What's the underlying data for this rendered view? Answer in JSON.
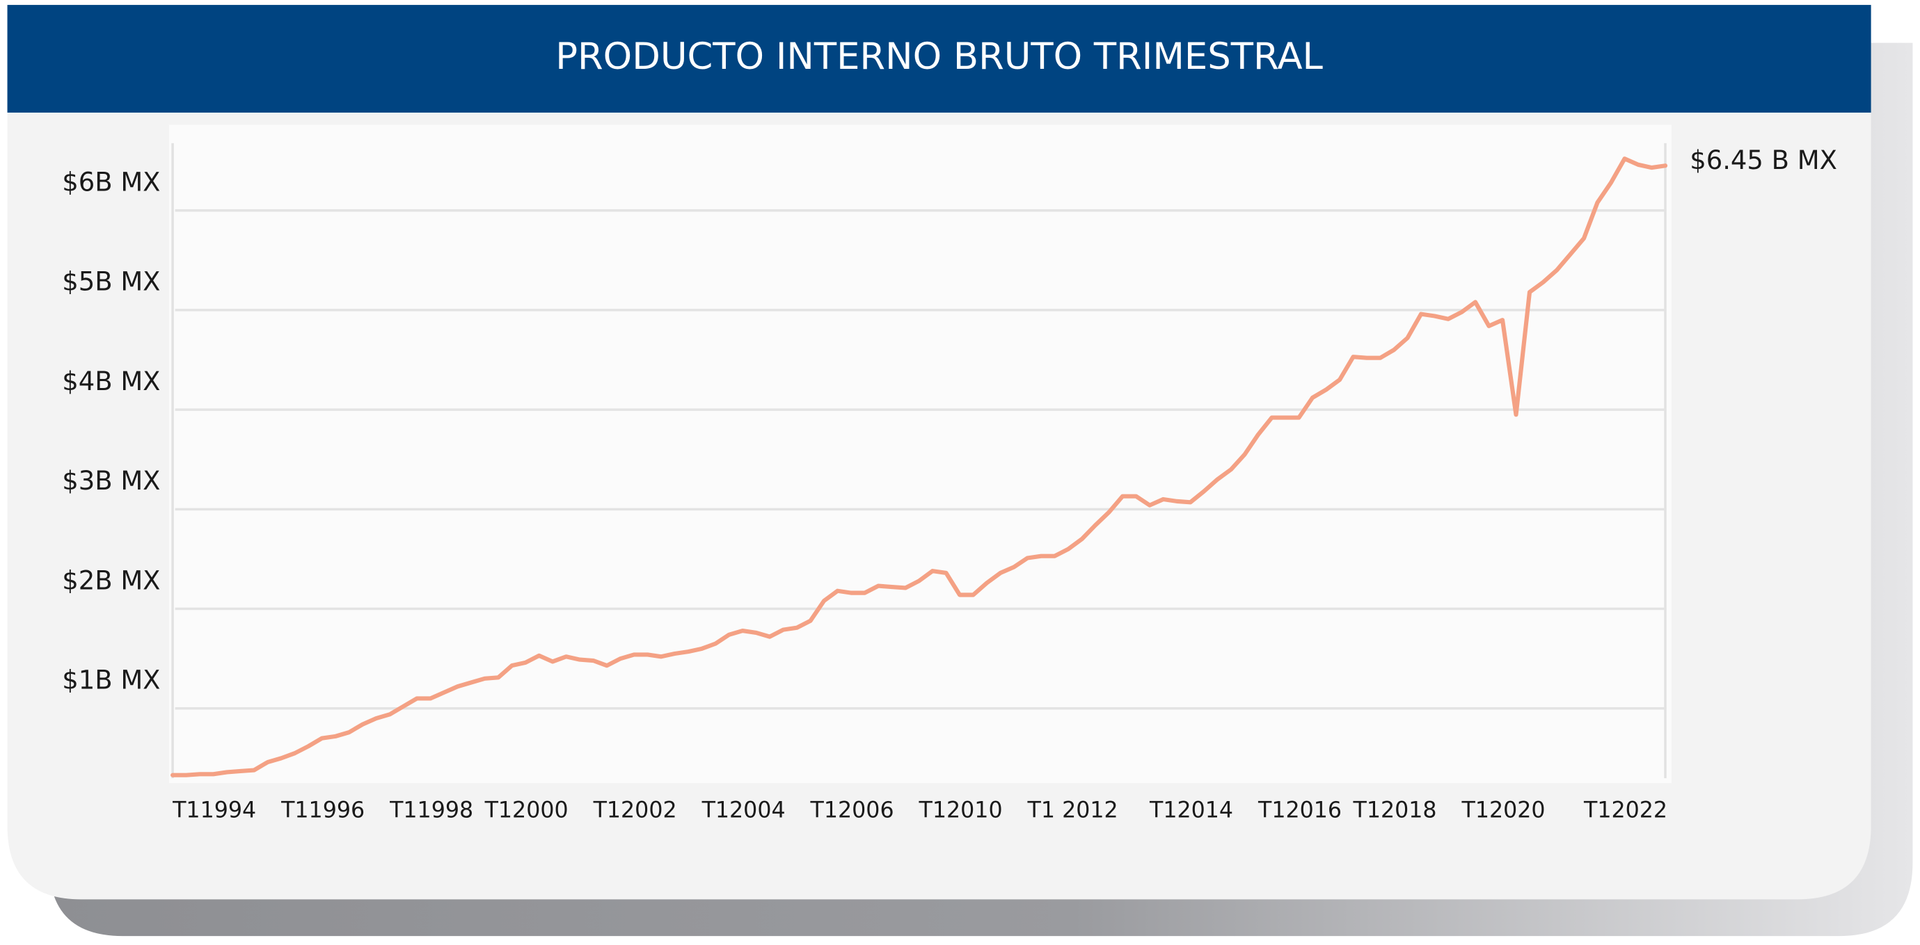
{
  "chart_data": {
    "type": "line",
    "title": "PRODUCTO INTERNO BRUTO TRIMESTRAL",
    "annotation": "$6.45 B MX",
    "color": "#f4a184",
    "grid": true,
    "categories": [
      "T11994",
      null,
      null,
      null,
      null,
      null,
      null,
      null,
      "T11996",
      null,
      null,
      null,
      null,
      null,
      null,
      null,
      "T11998",
      null,
      null,
      null,
      null,
      null,
      null,
      "T12000",
      null,
      null,
      null,
      null,
      null,
      null,
      null,
      "T12002",
      null,
      null,
      null,
      null,
      null,
      null,
      null,
      "T12004",
      null,
      null,
      null,
      null,
      null,
      null,
      null,
      "T12006",
      null,
      null,
      null,
      null,
      null,
      null,
      null,
      "T12010",
      null,
      null,
      null,
      null,
      null,
      null,
      null,
      "T1 2012",
      null,
      null,
      null,
      null,
      null,
      null,
      null,
      null,
      "T12014",
      null,
      null,
      null,
      null,
      null,
      null,
      null,
      "T12016",
      null,
      null,
      null,
      null,
      null,
      null,
      "T12018",
      null,
      null,
      null,
      null,
      null,
      null,
      null,
      "T12020",
      null,
      null,
      null,
      null,
      null,
      null,
      null,
      null,
      "T12022",
      null,
      null,
      null,
      null,
      null,
      null
    ],
    "values": [
      0.33,
      0.33,
      0.34,
      0.34,
      0.36,
      0.37,
      0.38,
      0.46,
      0.5,
      0.55,
      0.62,
      0.7,
      0.72,
      0.76,
      0.84,
      0.9,
      0.94,
      1.02,
      1.1,
      1.1,
      1.16,
      1.22,
      1.26,
      1.3,
      1.31,
      1.43,
      1.46,
      1.53,
      1.47,
      1.52,
      1.49,
      1.48,
      1.43,
      1.5,
      1.54,
      1.54,
      1.52,
      1.55,
      1.57,
      1.6,
      1.65,
      1.74,
      1.78,
      1.76,
      1.72,
      1.79,
      1.81,
      1.88,
      2.08,
      2.18,
      2.16,
      2.16,
      2.23,
      2.22,
      2.21,
      2.28,
      2.38,
      2.36,
      2.14,
      2.14,
      2.26,
      2.36,
      2.42,
      2.51,
      2.53,
      2.53,
      2.6,
      2.7,
      2.84,
      2.97,
      3.13,
      3.13,
      3.04,
      3.1,
      3.08,
      3.07,
      3.18,
      3.3,
      3.4,
      3.55,
      3.75,
      3.92,
      3.92,
      3.92,
      4.12,
      4.2,
      4.3,
      4.53,
      4.52,
      4.52,
      4.6,
      4.72,
      4.96,
      4.94,
      4.91,
      4.98,
      5.08,
      4.84,
      4.9,
      3.95,
      5.18,
      5.28,
      5.4,
      5.56,
      5.72,
      6.08,
      6.28,
      6.52,
      6.46,
      6.43,
      6.45
    ],
    "ylim": [
      0.25,
      6.86
    ],
    "yticks": [
      {
        "value": 1,
        "label": "$1B MX"
      },
      {
        "value": 2,
        "label": "$2B MX"
      },
      {
        "value": 3,
        "label": "$3B MX"
      },
      {
        "value": 4,
        "label": "$4B MX"
      },
      {
        "value": 5,
        "label": "$5B MX"
      },
      {
        "value": 6,
        "label": "$6B MX"
      }
    ]
  }
}
